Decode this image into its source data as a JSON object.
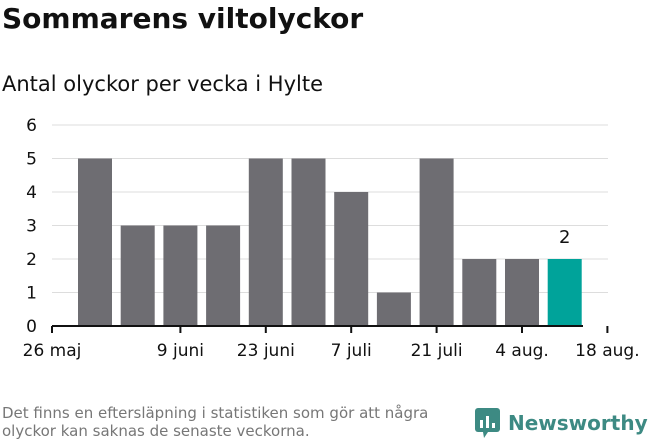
{
  "header": {
    "title": "Sommarens viltolyckor",
    "subtitle": "Antal olyckor per vecka i Hylte"
  },
  "footer": {
    "note": "Det finns en eftersläpning i statistiken som gör att några olyckor kan saknas de senaste veckorna.",
    "brand": "Newsworthy"
  },
  "colors": {
    "bar": "#6e6d72",
    "highlight": "#00a39a",
    "grid": "#dddddd",
    "axis": "#111111",
    "brand": "#3d8a83"
  },
  "chart_data": {
    "type": "bar",
    "title": "Sommarens viltolyckor",
    "subtitle": "Antal olyckor per vecka i Hylte",
    "xlabel": "",
    "ylabel": "",
    "values": [
      5,
      3,
      3,
      3,
      5,
      5,
      4,
      1,
      5,
      2,
      2,
      2
    ],
    "x_tick_labels": [
      "26 maj",
      "9 juni",
      "23 juni",
      "7 juli",
      "21 juli",
      "4 aug.",
      "18 aug."
    ],
    "y_ticks": [
      0,
      1,
      2,
      3,
      4,
      5,
      6
    ],
    "ylim": [
      0,
      6
    ],
    "grid": true,
    "highlight_index": 11,
    "highlight_label": "2"
  }
}
